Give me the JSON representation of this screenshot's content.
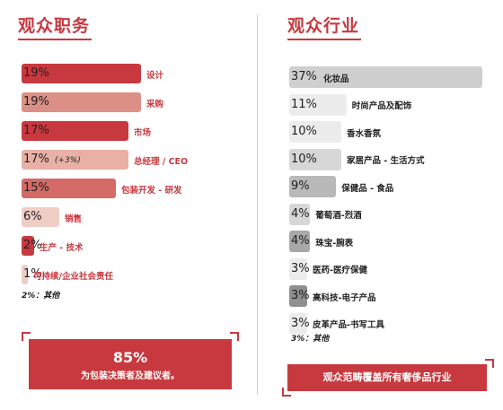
{
  "left": {
    "title": "观众职务",
    "other_note": "2%：其他",
    "callout_big": "85%",
    "callout_small": "为包装决策者及建议者。"
  },
  "right": {
    "title": "观众行业",
    "other_note": "3%：其他",
    "callout": "观众范畴覆盖所有奢侈品行业"
  },
  "chart_data": [
    {
      "type": "bar",
      "title": "观众职务",
      "categories": [
        "设计",
        "采购",
        "市场",
        "总经理 / CEO",
        "包装开发 - 研发",
        "销售",
        "生产 - 技术",
        "可持续/企业社会责任"
      ],
      "values": [
        19,
        19,
        17,
        17,
        15,
        6,
        2,
        1
      ],
      "value_labels": [
        "19%",
        "19%",
        "17%",
        "17%",
        "15%",
        "6%",
        "2%",
        "1%"
      ],
      "annotations": [
        "",
        "",
        "",
        "(+3%)",
        "",
        "",
        "",
        ""
      ],
      "colors": [
        "#c8393f",
        "#dc9085",
        "#c8393f",
        "#e9b1a6",
        "#d46a66",
        "#f0cec6",
        "#c8393f",
        "#f0cec6"
      ],
      "label_colors": [
        "#c8393f",
        "#c8393f",
        "#c8393f",
        "#c8393f",
        "#c8393f",
        "#c8393f",
        "#c8393f",
        "#c8393f"
      ]
    },
    {
      "type": "bar",
      "title": "观众行业",
      "categories": [
        "化妆品",
        "时尚产品及配饰",
        "香水香氛",
        "家居产品 - 生活方式",
        "保健品 - 食品",
        "葡萄酒-烈酒",
        "珠宝-腕表",
        "医药-医疗保健",
        "高科技-电子产品",
        "皮革产品-书写工具"
      ],
      "values": [
        37,
        11,
        10,
        10,
        9,
        4,
        4,
        3,
        3,
        3
      ],
      "value_labels": [
        "37%",
        "11%",
        "10%",
        "10%",
        "9%",
        "4%",
        "4%",
        "3%",
        "3%",
        "3%"
      ],
      "colors": [
        "#cfcfcf",
        "#ececec",
        "#ececec",
        "#d7d7d7",
        "#b9b9b9",
        "#d7d7d7",
        "#a8a8a8",
        "#ececec",
        "#8f8f8f",
        "#ececec"
      ],
      "label_colors": [
        "#222222",
        "#222222",
        "#222222",
        "#222222",
        "#222222",
        "#222222",
        "#222222",
        "#222222",
        "#222222",
        "#222222"
      ]
    }
  ]
}
